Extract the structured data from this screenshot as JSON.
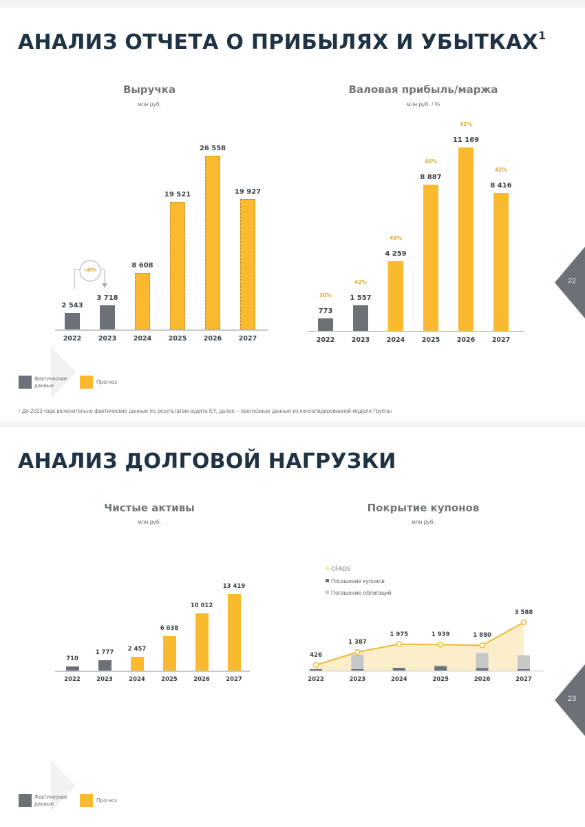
{
  "slide1": {
    "title": "АНАЛИЗ ОТЧЕТА О ПРИБЫЛЯХ И УБЫТКАХ",
    "title_sup": "1",
    "page_number": "22",
    "footnote": "¹ До 2023 года включительно фактические данные по результатам аудита EY, далее – прогнозные данные из консолидированной модели Группы",
    "legend": {
      "actual": "Фактические данные",
      "forecast": "Прогноз"
    }
  },
  "slide2": {
    "title": "АНАЛИЗ ДОЛГОВОЙ НАГРУЗКИ",
    "page_number": "23",
    "legend": {
      "actual": "Фактические данные",
      "forecast": "Прогноз"
    }
  },
  "colors": {
    "actual": "#6b7177",
    "forecast": "#fbb92f",
    "title": "#1f3344",
    "pct": "#e1a832",
    "cfads_fill": "#fdeecb",
    "bonds": "#c5c7c9",
    "coupons": "#6b7177"
  },
  "chart_data": [
    {
      "type": "bar",
      "title": "Выручка",
      "subtitle": "млн руб.",
      "categories": [
        "2022",
        "2023",
        "2024",
        "2025",
        "2026",
        "2027"
      ],
      "values": [
        2543,
        3718,
        8608,
        19521,
        26558,
        19927
      ],
      "labels": [
        "2 543",
        "3 718",
        "8 608",
        "19 521",
        "26 558",
        "19 927"
      ],
      "actual_flags": [
        true,
        true,
        false,
        false,
        false,
        false
      ],
      "annotation": "+46%",
      "xlabel": "",
      "ylabel": "",
      "ylim": [
        0,
        28000
      ],
      "grid": false
    },
    {
      "type": "bar",
      "title": "Валовая прибыль/маржа",
      "subtitle": "млн руб. / %",
      "categories": [
        "2022",
        "2023",
        "2024",
        "2025",
        "2026",
        "2027"
      ],
      "values": [
        773,
        1557,
        4259,
        8887,
        11169,
        8416
      ],
      "labels": [
        "773",
        "1 557",
        "4 259",
        "8 887",
        "11 169",
        "8 416"
      ],
      "margin_pct": [
        "30%",
        "42%",
        "49%",
        "46%",
        "42%",
        "42%"
      ],
      "actual_flags": [
        true,
        true,
        false,
        false,
        false,
        false
      ],
      "xlabel": "",
      "ylabel": "",
      "ylim": [
        0,
        12000
      ],
      "grid": false
    },
    {
      "type": "bar",
      "title": "Чистые активы",
      "subtitle": "млн руб.",
      "categories": [
        "2022",
        "2023",
        "2024",
        "2025",
        "2026",
        "2027"
      ],
      "values": [
        710,
        1777,
        2457,
        6038,
        10012,
        13419
      ],
      "labels": [
        "710",
        "1 777",
        "2 457",
        "6 038",
        "10 012",
        "13 419"
      ],
      "actual_flags": [
        true,
        true,
        false,
        false,
        false,
        false
      ],
      "xlabel": "",
      "ylabel": "",
      "ylim": [
        0,
        14000
      ],
      "grid": false
    },
    {
      "type": "area",
      "title": "Покрытие купонов",
      "subtitle": "млн руб.",
      "categories": [
        "2022",
        "2023",
        "2024",
        "2025",
        "2026",
        "2027"
      ],
      "legend": [
        "CFADS",
        "Погашение купонов",
        "Погашение облигаций"
      ],
      "series": [
        {
          "name": "CFADS",
          "values": [
            426,
            1387,
            1975,
            1939,
            1880,
            3588
          ],
          "labels": [
            "426",
            "1 387",
            "1 975",
            "1 939",
            "1 880",
            "3 588"
          ]
        },
        {
          "name": "Погашение купонов",
          "values": [
            80,
            100,
            200,
            300,
            180,
            60
          ]
        },
        {
          "name": "Погашение облигаций",
          "values": [
            0,
            1100,
            0,
            80,
            1150,
            1050
          ]
        }
      ],
      "xlabel": "",
      "ylabel": "",
      "ylim": [
        0,
        4000
      ],
      "grid": false
    }
  ]
}
